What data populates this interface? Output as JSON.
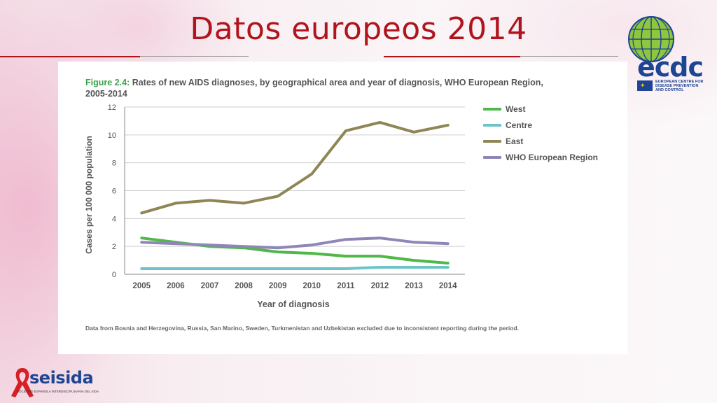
{
  "slide": {
    "title": "Datos europeos 2014"
  },
  "figure": {
    "number": "Figure 2.4:",
    "caption_line1": " Rates of new AIDS diagnoses, by geographical area and year of diagnosis, WHO European Region,",
    "caption_line2": "2005-2014",
    "footnote": "Data from Bosnia and Herzegovina, Russia, San Marino, Sweden, Turkmenistan and Uzbekistan excluded due to inconsistent reporting during the period."
  },
  "chart_data": {
    "type": "line",
    "title": "Rates of new AIDS diagnoses, by geographical area and year of diagnosis, WHO European Region, 2005-2014",
    "xlabel": "Year of diagnosis",
    "ylabel": "Cases per 100 000 population",
    "x": [
      "2005",
      "2006",
      "2007",
      "2008",
      "2009",
      "2010",
      "2011",
      "2012",
      "2013",
      "2014"
    ],
    "ylim": [
      0,
      12
    ],
    "yticks": [
      0,
      2,
      4,
      6,
      8,
      10,
      12
    ],
    "grid": true,
    "legend_position": "right",
    "series": [
      {
        "name": "West",
        "color": "#4fb848",
        "values": [
          2.6,
          2.3,
          2.0,
          1.9,
          1.6,
          1.5,
          1.3,
          1.3,
          1.0,
          0.8
        ]
      },
      {
        "name": "Centre",
        "color": "#6cc3c8",
        "values": [
          0.4,
          0.4,
          0.4,
          0.4,
          0.4,
          0.4,
          0.4,
          0.5,
          0.5,
          0.5
        ]
      },
      {
        "name": "East",
        "color": "#8e8755",
        "values": [
          4.4,
          5.1,
          5.3,
          5.1,
          5.6,
          7.2,
          10.3,
          10.9,
          10.2,
          10.7
        ]
      },
      {
        "name": "WHO European Region",
        "color": "#8f86b8",
        "values": [
          2.3,
          2.2,
          2.1,
          2.0,
          1.9,
          2.1,
          2.5,
          2.6,
          2.3,
          2.2
        ]
      }
    ]
  },
  "logos": {
    "ecdc_word": "ecdc",
    "ecdc_sub": "EUROPEAN CENTRE FOR DISEASE PREVENTION AND CONTROL",
    "seisida_word": "seisida",
    "seisida_sub": "SOCIEDAD ESPAÑOLA INTERDISCIPLINARIA DEL SIDA"
  }
}
